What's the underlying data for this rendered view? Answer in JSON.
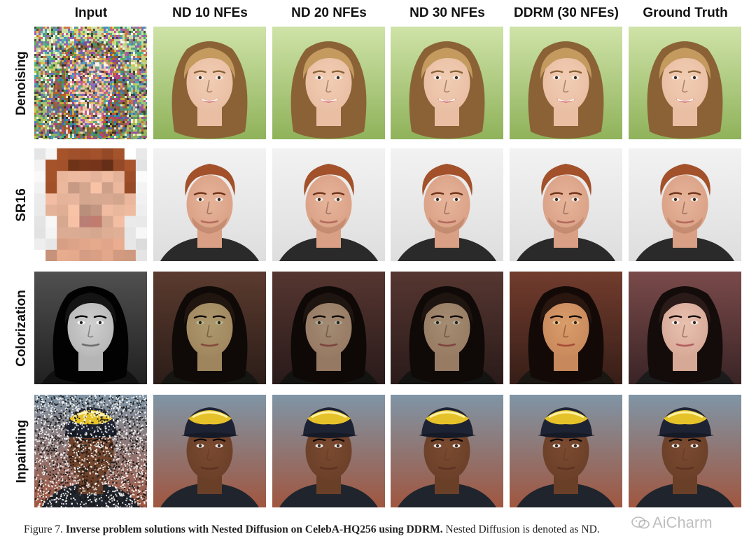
{
  "columns": [
    {
      "label": "Input"
    },
    {
      "label": "ND 10 NFEs"
    },
    {
      "label": "ND 20 NFEs"
    },
    {
      "label": "ND 30 NFEs"
    },
    {
      "label": "DDRM (30 NFEs)"
    },
    {
      "label": "Ground Truth"
    }
  ],
  "rows": [
    {
      "label": "Denoising",
      "subject": "woman-blonde",
      "input": "noise",
      "tints": [
        "",
        "",
        "",
        "",
        ""
      ]
    },
    {
      "label": "SR16",
      "subject": "man-auburn",
      "input": "pixelated",
      "tints": [
        "",
        "",
        "",
        "",
        ""
      ]
    },
    {
      "label": "Colorization",
      "subject": "woman-dark",
      "input": "grayscale",
      "tints": [
        "#6f8a2a",
        "#55603a",
        "#58663a",
        "#d8931f",
        ""
      ]
    },
    {
      "label": "Inpainting",
      "subject": "man-cap",
      "input": "masked",
      "tints": [
        "",
        "",
        "",
        "",
        ""
      ]
    }
  ],
  "caption": {
    "prefix": "Figure 7. ",
    "bold": "Inverse problem solutions with Nested Diffusion on CelebA-HQ256 using DDRM.",
    "rest": " Nested Diffusion is denoted as ND."
  },
  "watermark": {
    "text": "AiCharm",
    "icon": "wechat-icon"
  }
}
